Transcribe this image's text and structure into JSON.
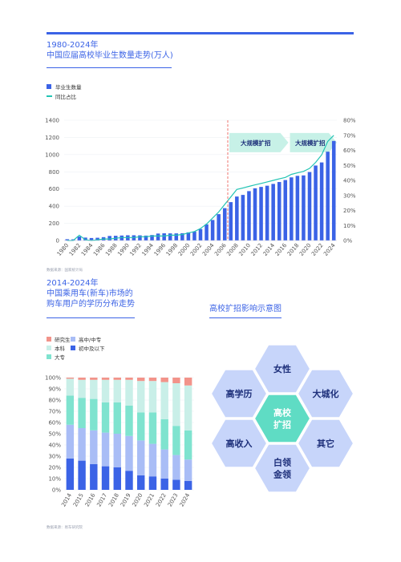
{
  "section1": {
    "title_line1": "1980-2024年",
    "title_line2": "中国应届高校毕业生数量走势(万人)",
    "legend_bar": "毕业生数量",
    "legend_line": "同比占比",
    "annotation_a": "大规模扩招",
    "annotation_b": "大规模扩招",
    "source": "数据来源：国家统计局"
  },
  "section2": {
    "title_line1": "2014-2024年",
    "title_line2": "中国乘用车(新车)市场的",
    "title_line3": "购车用户的学历分布走势",
    "legend": [
      "研究生",
      "高中/中专",
      "本科",
      "初中及以下",
      "大专"
    ],
    "source": "数据来源：易车研究院"
  },
  "section3": {
    "title": "高校扩招影响示意图",
    "center": [
      "高校",
      "扩招"
    ],
    "hexes": {
      "top": [
        "女性"
      ],
      "upper_left": [
        "高学历"
      ],
      "upper_right": [
        "大城化"
      ],
      "lower_left": [
        "高收入"
      ],
      "lower_right": [
        "其它"
      ],
      "bottom": [
        "白领",
        "金领"
      ]
    }
  },
  "colors": {
    "accent": "#3b63e6",
    "line": "#22c4b4",
    "graduate": "#f2938a",
    "bachelor": "#c9efe8",
    "college": "#7fe3cf",
    "highschool": "#a9bdf6",
    "junior": "#3b63e6",
    "hex": "#c7d5fa",
    "hex_center": "#5fdcc4"
  },
  "chart_data": [
    {
      "type": "bar",
      "title": "中国应届高校毕业生数量走势(万人)",
      "x": [
        1980,
        1981,
        1982,
        1983,
        1984,
        1985,
        1986,
        1987,
        1988,
        1989,
        1990,
        1991,
        1992,
        1993,
        1994,
        1995,
        1996,
        1997,
        1998,
        1999,
        2000,
        2001,
        2002,
        2003,
        2004,
        2005,
        2006,
        2007,
        2008,
        2009,
        2010,
        2011,
        2012,
        2013,
        2014,
        2015,
        2016,
        2017,
        2018,
        2019,
        2020,
        2021,
        2022,
        2023,
        2024
      ],
      "xticks": [
        "1980",
        "1982",
        "1984",
        "1986",
        "1988",
        "1990",
        "1992",
        "1994",
        "1996",
        "1998",
        "2000",
        "2002",
        "2004",
        "2006",
        "2008",
        "2010",
        "2012",
        "2014",
        "2016",
        "2018",
        "2020",
        "2022",
        "2024"
      ],
      "series": [
        {
          "name": "毕业生数量",
          "axis": "left",
          "type": "bar",
          "values": [
            15,
            14,
            46,
            34,
            29,
            32,
            39,
            53,
            55,
            58,
            61,
            61,
            60,
            57,
            64,
            81,
            84,
            83,
            83,
            85,
            95,
            104,
            134,
            188,
            239,
            307,
            377,
            447,
            512,
            531,
            575,
            608,
            624,
            638,
            659,
            681,
            704,
            735,
            753,
            758,
            797,
            873,
            909,
            1034,
            1159
          ]
        },
        {
          "name": "同比占比",
          "axis": "right",
          "type": "line",
          "values": [
            0,
            0,
            3.5,
            0.5,
            0,
            0.5,
            1,
            1,
            1.5,
            2,
            2,
            2,
            2.5,
            2.5,
            3,
            3,
            3,
            3.5,
            3.5,
            4,
            5,
            6,
            8,
            11,
            15,
            19,
            24,
            29,
            34,
            35,
            36,
            37,
            38,
            39,
            40,
            41,
            42,
            44,
            45,
            46,
            48,
            52,
            57,
            66,
            70
          ]
        }
      ],
      "ylim_left": [
        0,
        1400
      ],
      "yticks_left": [
        0,
        200,
        400,
        600,
        800,
        1000,
        1200,
        1400
      ],
      "ylim_right": [
        0,
        80
      ],
      "yticks_right": [
        "0%",
        "10%",
        "20%",
        "30%",
        "40%",
        "50%",
        "60%",
        "70%",
        "80%"
      ],
      "marker_line_year": 2006,
      "legend_position": "top-left"
    },
    {
      "type": "bar",
      "stacked": true,
      "percent": true,
      "categories": [
        "2014",
        "2015",
        "2016",
        "2017",
        "2018",
        "2019",
        "2020",
        "2021",
        "2022",
        "2023",
        "2024"
      ],
      "series": [
        {
          "name": "初中及以下",
          "values": [
            28,
            26,
            23,
            21,
            20,
            17,
            13,
            12,
            10,
            9,
            8
          ]
        },
        {
          "name": "高中/中专",
          "values": [
            30,
            29,
            30,
            30,
            30,
            31,
            31,
            29,
            26,
            22,
            19
          ]
        },
        {
          "name": "大专",
          "values": [
            26,
            27,
            28,
            27,
            28,
            27,
            25,
            28,
            27,
            26,
            26
          ]
        },
        {
          "name": "本科",
          "values": [
            15,
            16,
            17,
            20,
            20,
            23,
            28,
            28,
            33,
            38,
            40
          ]
        },
        {
          "name": "研究生",
          "values": [
            1,
            2,
            2,
            2,
            2,
            2,
            3,
            3,
            4,
            5,
            7
          ]
        }
      ],
      "ylim": [
        0,
        100
      ],
      "yticks": [
        "0%",
        "10%",
        "20%",
        "30%",
        "40%",
        "50%",
        "60%",
        "70%",
        "80%",
        "90%",
        "100%"
      ],
      "legend_position": "top-left"
    }
  ]
}
